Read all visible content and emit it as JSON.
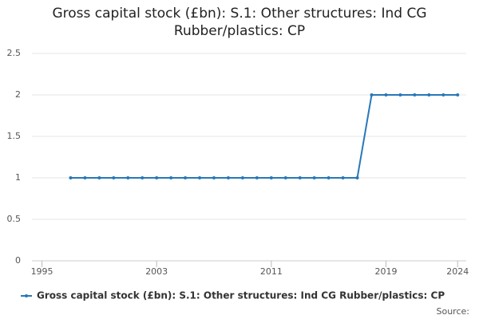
{
  "chart_data": {
    "type": "line",
    "title": "Gross capital stock (£bn): S.1: Other structures: Ind CG Rubber/plastics: CP",
    "x": [
      1997,
      1998,
      1999,
      2000,
      2001,
      2002,
      2003,
      2004,
      2005,
      2006,
      2007,
      2008,
      2009,
      2010,
      2011,
      2012,
      2013,
      2014,
      2015,
      2016,
      2017,
      2018,
      2019,
      2020,
      2021,
      2022,
      2023,
      2024
    ],
    "series": [
      {
        "name": "Gross capital stock (£bn): S.1: Other structures: Ind CG Rubber/plastics: CP",
        "color": "#2878b8",
        "values": [
          1,
          1,
          1,
          1,
          1,
          1,
          1,
          1,
          1,
          1,
          1,
          1,
          1,
          1,
          1,
          1,
          1,
          1,
          1,
          1,
          1,
          2,
          2,
          2,
          2,
          2,
          2,
          2
        ]
      }
    ],
    "xlim": [
      1994.3,
      2024.6
    ],
    "xticks": [
      1995,
      2003,
      2011,
      2019,
      2024
    ],
    "ylim": [
      0,
      2.5
    ],
    "yticks": [
      0,
      0.5,
      1,
      1.5,
      2,
      2.5
    ],
    "grid": true,
    "legend": "bottom",
    "source": "Source:"
  }
}
